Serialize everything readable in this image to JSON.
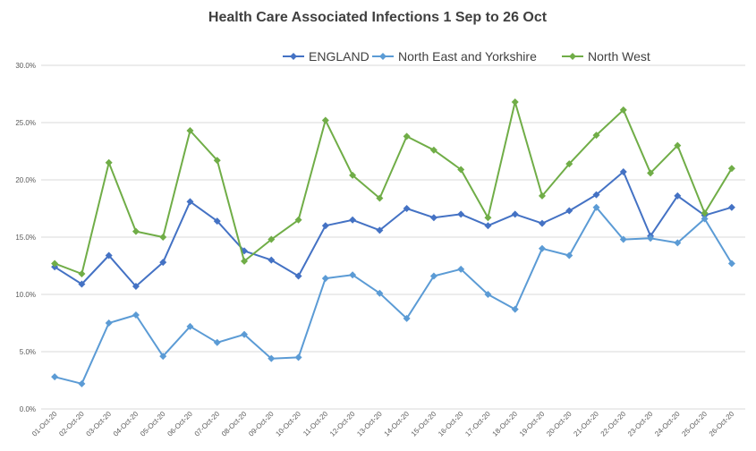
{
  "chart_data": {
    "type": "line",
    "title": "Health Care Associated Infections 1 Sep to 26 Oct",
    "xlabel": "",
    "ylabel": "",
    "ylim": [
      0,
      30
    ],
    "yticks": [
      "0.0%",
      "5.0%",
      "10.0%",
      "15.0%",
      "20.0%",
      "25.0%",
      "30.0%"
    ],
    "grid": true,
    "legend_position": "top",
    "categories": [
      "01-Oct-20",
      "02-Oct-20",
      "03-Oct-20",
      "04-Oct-20",
      "05-Oct-20",
      "06-Oct-20",
      "07-Oct-20",
      "08-Oct-20",
      "09-Oct-20",
      "10-Oct-20",
      "11-Oct-20",
      "12-Oct-20",
      "13-Oct-20",
      "14-Oct-20",
      "15-Oct-20",
      "16-Oct-20",
      "17-Oct-20",
      "18-Oct-20",
      "19-Oct-20",
      "20-Oct-20",
      "21-Oct-20",
      "22-Oct-20",
      "23-Oct-20",
      "24-Oct-20",
      "25-Oct-20",
      "26-Oct-20"
    ],
    "series": [
      {
        "name": "ENGLAND",
        "color": "#4472C4",
        "values": [
          12.4,
          10.9,
          13.4,
          10.7,
          12.8,
          18.1,
          16.4,
          13.8,
          13.0,
          11.6,
          16.0,
          16.5,
          15.6,
          17.5,
          16.7,
          17.0,
          16.0,
          17.0,
          16.2,
          17.3,
          18.7,
          20.7,
          15.1,
          18.6,
          16.9,
          17.6
        ]
      },
      {
        "name": "North East and Yorkshire",
        "color": "#5B9BD5",
        "values": [
          2.8,
          2.2,
          7.5,
          8.2,
          4.6,
          7.2,
          5.8,
          6.5,
          4.4,
          4.5,
          11.4,
          11.7,
          10.1,
          7.9,
          11.6,
          12.2,
          10.0,
          8.7,
          14.0,
          13.4,
          17.6,
          14.8,
          14.9,
          14.5,
          16.6,
          12.7
        ]
      },
      {
        "name": "North West",
        "color": "#70AD47",
        "values": [
          12.7,
          11.8,
          21.5,
          15.5,
          15.0,
          24.3,
          21.7,
          12.9,
          14.8,
          16.5,
          25.2,
          20.4,
          18.4,
          23.8,
          22.6,
          20.9,
          16.7,
          26.8,
          18.6,
          21.4,
          23.9,
          26.1,
          20.6,
          23.0,
          17.1,
          21.0
        ]
      }
    ]
  }
}
